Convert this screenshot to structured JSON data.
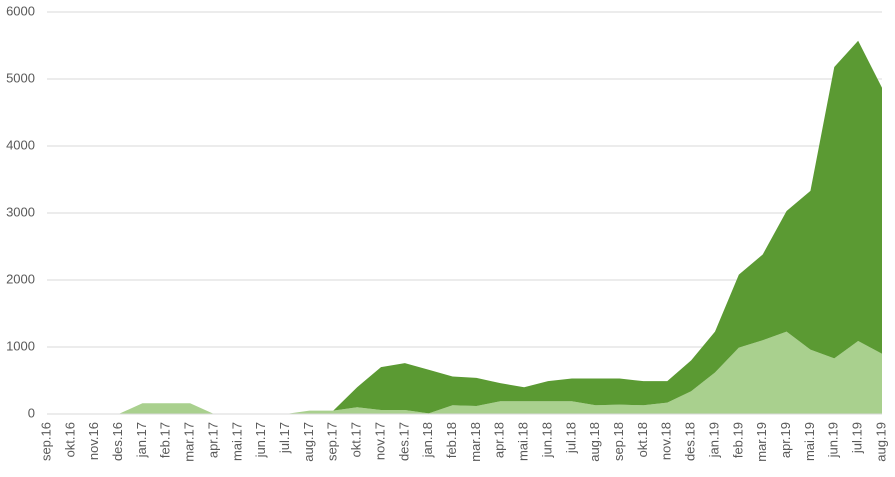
{
  "chart_data": {
    "type": "stacked-area",
    "categories": [
      "sep.16",
      "okt.16",
      "nov.16",
      "des.16",
      "jan.17",
      "feb.17",
      "mar.17",
      "apr.17",
      "mai.17",
      "jun.17",
      "jul.17",
      "aug.17",
      "sep.17",
      "okt.17",
      "nov.17",
      "des.17",
      "jan.18",
      "feb.18",
      "mar.18",
      "apr.18",
      "mai.18",
      "jun.18",
      "jul.18",
      "aug.18",
      "sep.18",
      "okt.18",
      "nov.18",
      "des.18",
      "jan.19",
      "feb.19",
      "mar.19",
      "apr.19",
      "mai.19",
      "jun.19",
      "jul.19",
      "aug.19"
    ],
    "series": [
      {
        "color": "#a9d08e",
        "values": [
          0,
          0,
          0,
          0,
          160,
          160,
          160,
          0,
          0,
          0,
          0,
          50,
          50,
          100,
          60,
          60,
          10,
          130,
          120,
          190,
          190,
          190,
          190,
          130,
          140,
          130,
          170,
          340,
          620,
          990,
          1100,
          1230,
          960,
          830,
          1090,
          900
        ]
      },
      {
        "color": "#5b9a33",
        "values": [
          0,
          0,
          0,
          0,
          0,
          0,
          0,
          0,
          0,
          0,
          0,
          0,
          0,
          300,
          640,
          700,
          650,
          430,
          420,
          270,
          210,
          300,
          340,
          400,
          390,
          360,
          320,
          460,
          610,
          1090,
          1280,
          1800,
          2370,
          4350,
          4480,
          3970
        ]
      }
    ],
    "ylim": [
      0,
      6000
    ],
    "yticks": [
      0,
      1000,
      2000,
      3000,
      4000,
      5000,
      6000
    ],
    "grid": true
  }
}
